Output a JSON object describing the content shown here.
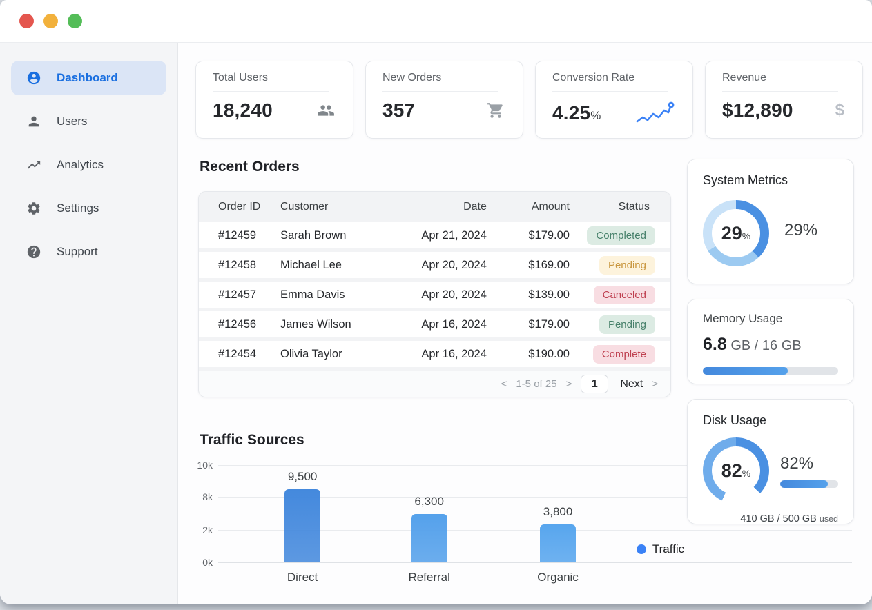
{
  "colors": {
    "accent": "#3b82f6",
    "active_nav_bg": "#dbe5f6",
    "active_nav_text": "#1a6fe0",
    "badge_green_bg": "#dcebe3",
    "badge_green_text": "#46806a",
    "badge_yellow_bg": "#fdf3dc",
    "badge_yellow_text": "#c9973f",
    "badge_red_bg": "#f8dde2",
    "badge_red_text": "#bf4050",
    "traffic_red": "#e4564e",
    "traffic_yellow": "#f2b13c",
    "traffic_green": "#54bd58"
  },
  "sidebar": {
    "items": [
      {
        "label": "Dashboard",
        "icon": "account-circle-icon",
        "active": true
      },
      {
        "label": "Users",
        "icon": "person-icon",
        "active": false
      },
      {
        "label": "Analytics",
        "icon": "trending-up-icon",
        "active": false
      },
      {
        "label": "Settings",
        "icon": "gear-icon",
        "active": false
      },
      {
        "label": "Support",
        "icon": "help-circle-icon",
        "active": false
      }
    ]
  },
  "stats": [
    {
      "title": "Total Users",
      "value": "18,240",
      "unit": "",
      "icon": "users-group-icon"
    },
    {
      "title": "New Orders",
      "value": "357",
      "unit": "",
      "icon": "cart-icon"
    },
    {
      "title": "Conversion Rate",
      "value": "4.25",
      "unit": "%",
      "icon": "sparkline-icon"
    },
    {
      "title": "Revenue",
      "value": "$12,890",
      "unit": "",
      "icon": "dollar-icon"
    }
  ],
  "orders": {
    "title": "Recent Orders",
    "columns": [
      "Order ID",
      "Customer",
      "Date",
      "Amount",
      "Status"
    ],
    "rows": [
      {
        "id": "#12459",
        "customer": "Sarah Brown",
        "date": "Apr 21, 2024",
        "amount": "$179.00",
        "status": "Completed",
        "variant": "green"
      },
      {
        "id": "#12458",
        "customer": "Michael Lee",
        "date": "Apr 20, 2024",
        "amount": "$169.00",
        "status": "Pending",
        "variant": "yellow"
      },
      {
        "id": "#12457",
        "customer": "Emma Davis",
        "date": "Apr 20, 2024",
        "amount": "$139.00",
        "status": "Canceled",
        "variant": "red"
      },
      {
        "id": "#12456",
        "customer": "James Wilson",
        "date": "Apr 16, 2024",
        "amount": "$179.00",
        "status": "Pending",
        "variant": "green"
      },
      {
        "id": "#12454",
        "customer": "Olivia Taylor",
        "date": "Apr 16, 2024",
        "amount": "$190.00",
        "status": "Complete",
        "variant": "red"
      }
    ],
    "pagination": {
      "prev_chevron": "<",
      "range": "1-5 of 25",
      "range_chevron": ">",
      "page": "1",
      "next_label": "Next",
      "next_chevron": ">"
    }
  },
  "chart_data": {
    "type": "bar",
    "title": "Traffic Sources",
    "categories": [
      "Direct",
      "Referral",
      "Organic"
    ],
    "values": [
      9500,
      6300,
      3800
    ],
    "value_labels": [
      "9,500",
      "6,300",
      "3,800"
    ],
    "series_name": "Traffic",
    "ylim": [
      0,
      10000
    ],
    "y_ticks": [
      {
        "label": "10k",
        "top_pct": 6
      },
      {
        "label": "8k",
        "top_pct": 36.7
      },
      {
        "label": "2k",
        "top_pct": 68.7
      },
      {
        "label": "0k",
        "top_pct": 100
      }
    ],
    "grid": true,
    "legend_position": "right",
    "bar_colors": [
      "#4489dd",
      "#55a1eb",
      "#58a6ee"
    ],
    "bar_height_pct": [
      71,
      47,
      37
    ],
    "bar_left_pct": [
      13.3,
      33.3,
      53.6
    ],
    "legend_color": "#3b82f6"
  },
  "metrics": {
    "system": {
      "title": "System Metrics",
      "value": "29",
      "unit": "%",
      "side_label": "29%"
    },
    "memory": {
      "title": "Memory Usage",
      "used": "6.8",
      "detail": " GB / 16 GB",
      "fill_pct": 63
    },
    "disk": {
      "title": "Disk Usage",
      "value": "82",
      "unit": "%",
      "side_label": "82%",
      "fill_pct": 82,
      "detail": "410 GB / 500 GB ",
      "detail_suffix": "used"
    }
  }
}
